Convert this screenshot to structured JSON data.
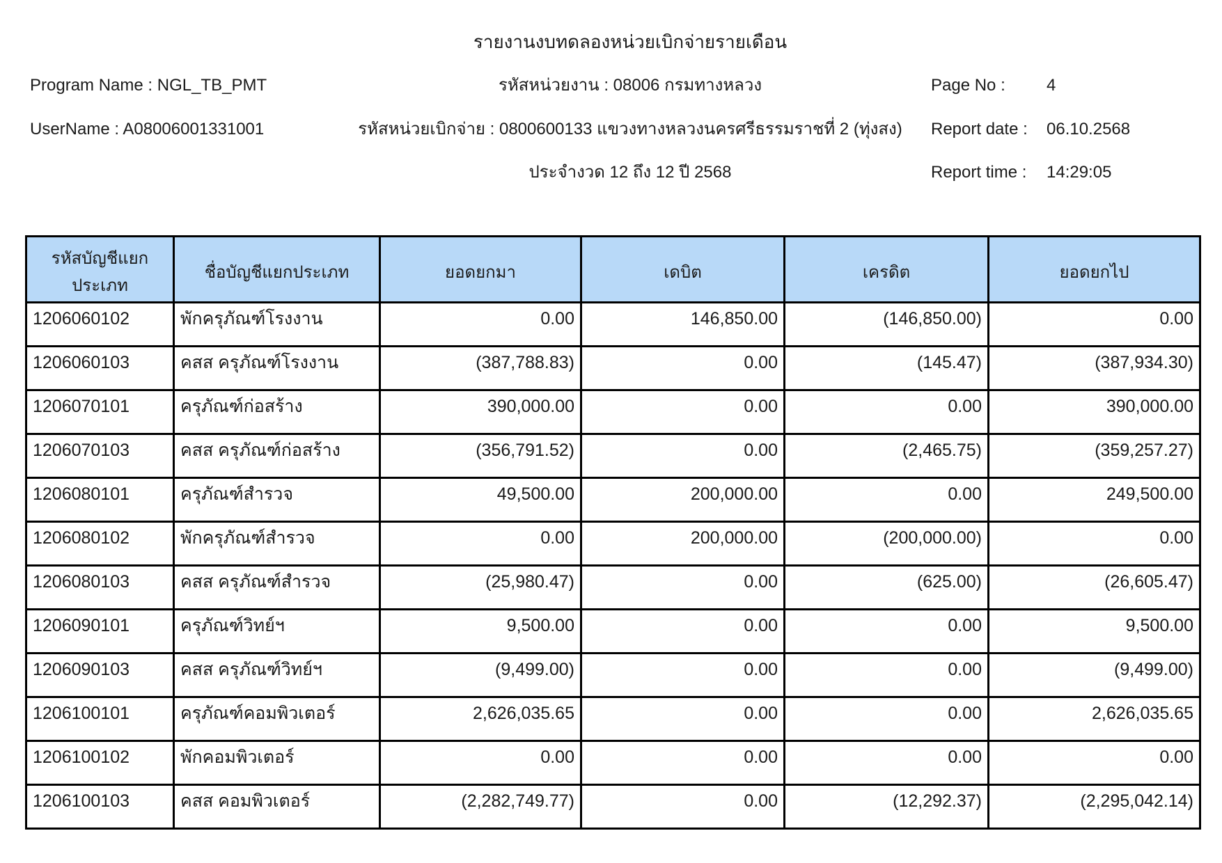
{
  "header": {
    "title": "รายงานงบทดลองหน่วยเบิกจ่ายรายเดือน",
    "program": {
      "label": "Program Name :",
      "value": "NGL_TB_PMT"
    },
    "user": {
      "label": "UserName :",
      "value": "A08006001331001"
    },
    "agency_line": "รหัสหน่วยงาน : 08006 กรมทางหลวง",
    "disbursement_unit_line": "รหัสหน่วยเบิกจ่าย : 0800600133 แขวงทางหลวงนครศรีธรรมราชที่ 2 (ทุ่งสง)",
    "period_line": "ประจำงวด 12 ถึง 12 ปี 2568",
    "page": {
      "label": "Page No :",
      "value": "4"
    },
    "date": {
      "label": "Report date :",
      "value": "06.10.2568"
    },
    "time": {
      "label": "Report time :",
      "value": "14:29:05"
    }
  },
  "table": {
    "header_bg": "#b8d9f8",
    "border_color": "#000000",
    "columns": [
      "รหัสบัญชีแยกประเภท",
      "ชื่อบัญชีแยกประเภท",
      "ยอดยกมา",
      "เดบิต",
      "เครดิต",
      "ยอดยกไป"
    ],
    "rows": [
      [
        "1206060102",
        "พักครุภัณฑ์โรงงาน",
        "0.00",
        "146,850.00",
        "(146,850.00)",
        "0.00"
      ],
      [
        "1206060103",
        "คสส ครุภัณฑ์โรงงาน",
        "(387,788.83)",
        "0.00",
        "(145.47)",
        "(387,934.30)"
      ],
      [
        "1206070101",
        "ครุภัณฑ์ก่อสร้าง",
        "390,000.00",
        "0.00",
        "0.00",
        "390,000.00"
      ],
      [
        "1206070103",
        "คสส ครุภัณฑ์ก่อสร้าง",
        "(356,791.52)",
        "0.00",
        "(2,465.75)",
        "(359,257.27)"
      ],
      [
        "1206080101",
        "ครุภัณฑ์สำรวจ",
        "49,500.00",
        "200,000.00",
        "0.00",
        "249,500.00"
      ],
      [
        "1206080102",
        "พักครุภัณฑ์สำรวจ",
        "0.00",
        "200,000.00",
        "(200,000.00)",
        "0.00"
      ],
      [
        "1206080103",
        "คสส ครุภัณฑ์สำรวจ",
        "(25,980.47)",
        "0.00",
        "(625.00)",
        "(26,605.47)"
      ],
      [
        "1206090101",
        "ครุภัณฑ์วิทย์ฯ",
        "9,500.00",
        "0.00",
        "0.00",
        "9,500.00"
      ],
      [
        "1206090103",
        "คสส ครุภัณฑ์วิทย์ฯ",
        "(9,499.00)",
        "0.00",
        "0.00",
        "(9,499.00)"
      ],
      [
        "1206100101",
        "ครุภัณฑ์คอมพิวเตอร์",
        "2,626,035.65",
        "0.00",
        "0.00",
        "2,626,035.65"
      ],
      [
        "1206100102",
        "พักคอมพิวเตอร์",
        "0.00",
        "0.00",
        "0.00",
        "0.00"
      ],
      [
        "1206100103",
        "คสส คอมพิวเตอร์",
        "(2,282,749.77)",
        "0.00",
        "(12,292.37)",
        "(2,295,042.14)"
      ]
    ]
  }
}
